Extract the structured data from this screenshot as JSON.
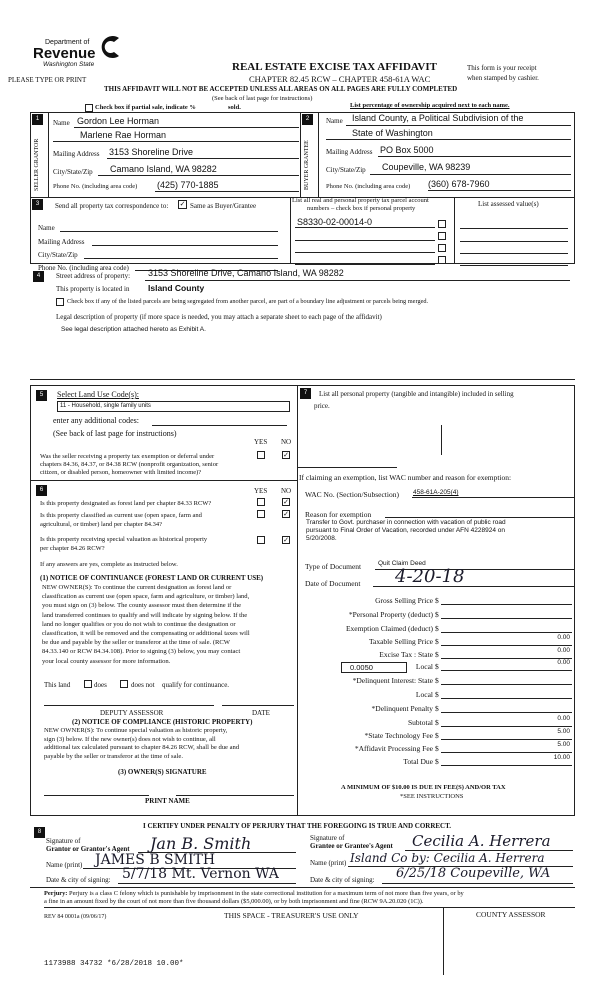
{
  "header": {
    "logo_dept": "Department of",
    "logo_revenue": "Revenue",
    "logo_state": "Washington State",
    "title": "REAL ESTATE EXCISE TAX AFFIDAVIT",
    "chapter": "CHAPTER 82.45 RCW – CHAPTER 458-61A WAC",
    "please": "PLEASE TYPE OR PRINT",
    "receipt1": "This form is your receipt",
    "receipt2": "when stamped by cashier.",
    "warning": "THIS AFFIDAVIT WILL NOT BE ACCEPTED UNLESS ALL AREAS ON ALL PAGES ARE FULLY COMPLETED",
    "see_back": "(See back of last page for instructions)",
    "partial": "Check box if partial sale, indicate %",
    "sold": "sold.",
    "percentage": "List percentage of ownership acquired next to each name."
  },
  "seller": {
    "num": "1",
    "side": "SELLER GRANTOR",
    "name_label": "Name",
    "name1": "Gordon Lee Horman",
    "name2": "Marlene Rae Horman",
    "addr_label": "Mailing Address",
    "addr": "3153 Shoreline Drive",
    "city_label": "City/State/Zip",
    "city": "Camano Island, WA  98282",
    "phone_label": "Phone No. (including area code)",
    "phone": "(425) 770-1885"
  },
  "buyer": {
    "num": "2",
    "side": "BUYER GRANTEE",
    "name_label": "Name",
    "name1": "Island County, a Political Subdivision of the",
    "name2": "State of Washington",
    "addr_label": "Mailing Address",
    "addr": "PO Box 5000",
    "city_label": "City/State/Zip",
    "city": "Coupeville, WA  98239",
    "phone_label": "Phone No. (including area code)",
    "phone": "(360) 678-7960"
  },
  "sec3": {
    "num": "3",
    "send": "Send all property tax correspondence to:",
    "same": "Same as Buyer/Grantee",
    "same_checked": true,
    "name": "Name",
    "addr": "Mailing Address",
    "city": "City/State/Zip",
    "phone": "Phone No. (including area code)",
    "parcel_head1": "List all real and personal property tax parcel account",
    "parcel_head2": "numbers – check box if personal property",
    "parcels": [
      "S8330-02-00014-0",
      "",
      "",
      ""
    ],
    "assessed_head": "List assessed value(s)"
  },
  "sec4": {
    "num": "4",
    "street_label": "Street address of property:",
    "street": "3153 Shoreline Drive, Camano Island, WA  98282",
    "located_label": "This property is located in",
    "county": "Island County",
    "segregate": "Check box if any of the listed parcels are being segregated from another parcel, are part of a boundary line adjustment or parcels being merged.",
    "legal_label": "Legal description of property (if more space is needed, you may attach a separate sheet to each page of the affidavit)",
    "legal": "See legal description attached hereto as Exhibit A."
  },
  "sec5": {
    "num": "5",
    "label": "Select Land Use Code(s):",
    "code": "11 - Household, single family units",
    "additional": "enter any additional codes:",
    "see_back": "(See back of last page for instructions)",
    "yes": "YES",
    "no": "NO",
    "q1": "Was the seller receiving a property tax exemption or deferral under",
    "q2": "chapters 84.36, 84.37, or 84.38 RCW (nonprofit organization, senior",
    "q3": "citizen, or disabled person, homeowner with limited income)?",
    "answer": "NO"
  },
  "sec6": {
    "num": "6",
    "yes": "YES",
    "no": "NO",
    "q_forest": "Is this property designated as forest land per chapter 84.33 RCW?",
    "q_cu1": "Is this property classified as current use (open space, farm and",
    "q_cu2": "agricultural, or timber) land per chapter 84.34?",
    "q_hist1": "Is this property receiving special valuation as historical property",
    "q_hist2": "per chapter 84.26 RCW?",
    "answers": [
      "NO",
      "NO",
      "NO"
    ],
    "if_yes": "If any answers are yes, complete as instructed below.",
    "n1_title": "(1) NOTICE OF CONTINUANCE  (FOREST LAND OR CURRENT USE)",
    "n1_lines": [
      "NEW OWNER(S): To continue the current designation as forest land or",
      "classification as current use (open space, farm and agriculture, or timber) land,",
      "you must sign on (3) below. The county assessor must then determine if the",
      "land transferred continues to qualify and will indicate by signing below. If the",
      "land no longer qualifies or you do not wish to continue the designation or",
      "classification, it will be removed and the compensating or additional taxes will",
      "be due and payable by the seller or transferor at the time of sale. (RCW",
      "84.33.140 or RCW 84.34.108). Prior to signing (3) below, you may contact",
      "your local county assessor for more information."
    ],
    "this_land": "This land",
    "does": "does",
    "does_not": "does not",
    "qualify": "qualify for continuance.",
    "deputy": "DEPUTY ASSESSOR",
    "date": "DATE",
    "n2_title": "(2) NOTICE OF COMPLIANCE (HISTORIC PROPERTY)",
    "n2_lines": [
      "NEW OWNER(S): To continue special valuation as historic property,",
      "sign (3) below. If the new owner(s) does not wish to continue, all",
      "additional tax calculated pursuant to chapter 84.26 RCW, shall be due and",
      "payable by the seller or transferor at the time of sale."
    ],
    "n3_title": "(3)  OWNER(S) SIGNATURE",
    "print_name": "PRINT NAME"
  },
  "sec7": {
    "num": "7",
    "text1": "List all  personal property (tangible and intangible) included in selling",
    "text2": "price.",
    "exempt_head": "If claiming an exemption, list WAC number and reason for exemption:",
    "wac_label": "WAC No. (Section/Subsection)",
    "wac": "458-61A-205(4)",
    "reason_label": "Reason for exemption",
    "reason_lines": [
      "Transfer to Govt. purchaser in connection with vacation of public road",
      "pursuant to Final Order of Vacation, recorded under AFN 4228924 on",
      "5/20/2008."
    ],
    "doc_type_label": "Type of Document",
    "doc_type": "Quit Claim Deed",
    "doc_date_label": "Date of Document",
    "doc_date": "4-20-18"
  },
  "fees": [
    {
      "label": "Gross Selling Price",
      "value": ""
    },
    {
      "label": "*Personal Property (deduct)",
      "value": ""
    },
    {
      "label": "Exemption Claimed (deduct)",
      "value": ""
    },
    {
      "label": "Taxable Selling Price",
      "value": "0.00"
    },
    {
      "label": "Excise Tax : State",
      "value": "0.00"
    },
    {
      "label": "Local",
      "value": "0.00"
    },
    {
      "label": "*Delinquent Interest: State",
      "value": ""
    },
    {
      "label": "Local",
      "value": ""
    },
    {
      "label": "*Delinquent Penalty",
      "value": ""
    },
    {
      "label": "Subtotal",
      "value": "0.00"
    },
    {
      "label": "*State Technology Fee",
      "value": "5.00"
    },
    {
      "label": "*Affidavit Processing Fee",
      "value": "5.00"
    },
    {
      "label": "Total Due",
      "value": "10.00"
    }
  ],
  "local_rate": "0.0050",
  "dollar": "$",
  "minimum": "A MINIMUM OF $10.00 IS DUE IN FEE(S) AND/OR TAX",
  "see_instr": "*SEE INSTRUCTIONS",
  "sec8": {
    "num": "8",
    "certify": "I CERTIFY UNDER PENALTY OF PERJURY THAT THE FOREGOING IS TRUE AND CORRECT.",
    "sig_of": "Signature of",
    "grantor_agent": "Grantor or Grantor's Agent",
    "grantee_agent": "Grantee or Grantee's Agent",
    "name_print": "Name (print)",
    "date_city": "Date & city of signing:",
    "grantor_sig": "Jan B. Smith",
    "grantor_name": "JAMES B SMITH",
    "grantor_date": "5/7/18  Mt. Vernon WA",
    "grantee_sig": "Cecilia A. Herrera",
    "grantee_name": "Island Co by: Cecilia A. Herrera",
    "grantee_date": "6/25/18     Coupeville, WA"
  },
  "footer": {
    "perjury_label": "Perjury:",
    "perjury1": "Perjury is a class C felony which is punishable by imprisonment in the state correctional institution for a maximum term of not more than five years, or by",
    "perjury2": "a fine in an amount fixed by the court of not more than five thousand dollars ($5,000.00), or by both imprisonment and fine (RCW 9A.20.020 (1C)).",
    "rev": "REV 84 0001a (09/06/17)",
    "treasurer": "THIS SPACE - TREASURER'S USE ONLY",
    "assessor": "COUNTY ASSESSOR",
    "stamp": "1173988 34732 *6/28/2018 10.00*"
  }
}
